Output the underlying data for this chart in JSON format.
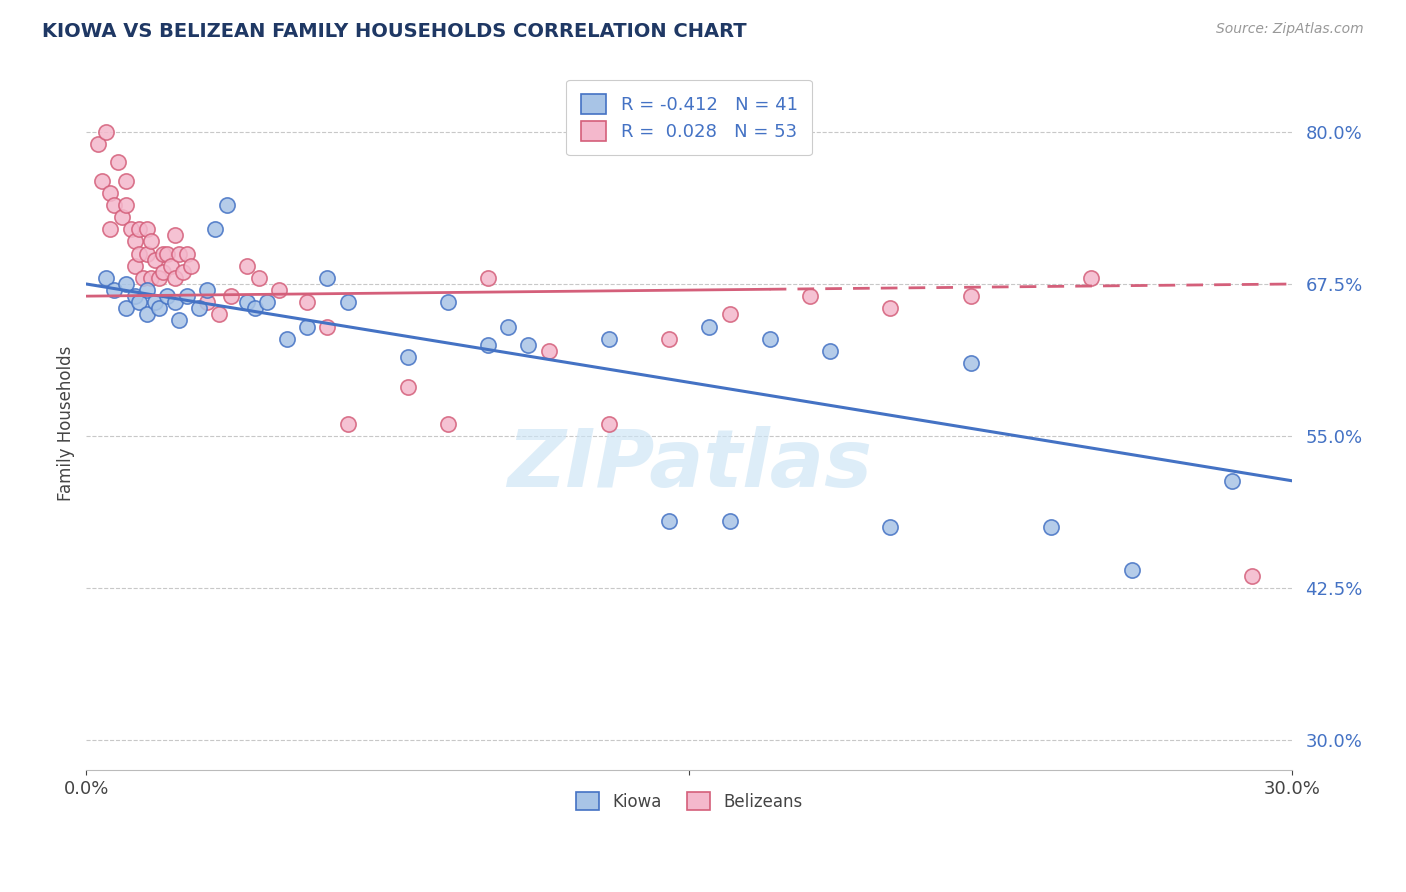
{
  "title": "KIOWA VS BELIZEAN FAMILY HOUSEHOLDS CORRELATION CHART",
  "source_text": "Source: ZipAtlas.com",
  "ylabel": "Family Households",
  "yticks": [
    0.3,
    0.425,
    0.55,
    0.675,
    0.8
  ],
  "ytick_labels": [
    "30.0%",
    "42.5%",
    "55.0%",
    "67.5%",
    "80.0%"
  ],
  "xmin": 0.0,
  "xmax": 0.3,
  "ymin": 0.275,
  "ymax": 0.845,
  "kiowa_dot_color": "#a8c4e6",
  "belizean_dot_color": "#f4b8cc",
  "kiowa_line_color": "#4472c4",
  "belizean_line_color": "#d45f7a",
  "kiowa_R": -0.412,
  "kiowa_N": 41,
  "belizean_R": 0.028,
  "belizean_N": 53,
  "grid_color": "#c8c8c8",
  "background_color": "#ffffff",
  "title_color": "#1f3864",
  "legend_text_color": "#4472c4",
  "kiowa_x": [
    0.005,
    0.007,
    0.01,
    0.01,
    0.012,
    0.013,
    0.015,
    0.015,
    0.017,
    0.018,
    0.02,
    0.022,
    0.023,
    0.025,
    0.028,
    0.03,
    0.032,
    0.035,
    0.04,
    0.042,
    0.045,
    0.05,
    0.055,
    0.06,
    0.065,
    0.08,
    0.09,
    0.1,
    0.105,
    0.11,
    0.13,
    0.145,
    0.155,
    0.16,
    0.17,
    0.185,
    0.2,
    0.22,
    0.24,
    0.26,
    0.285
  ],
  "kiowa_y": [
    0.68,
    0.67,
    0.675,
    0.655,
    0.665,
    0.66,
    0.67,
    0.65,
    0.66,
    0.655,
    0.665,
    0.66,
    0.645,
    0.665,
    0.655,
    0.67,
    0.72,
    0.74,
    0.66,
    0.655,
    0.66,
    0.63,
    0.64,
    0.68,
    0.66,
    0.615,
    0.66,
    0.625,
    0.64,
    0.625,
    0.63,
    0.48,
    0.64,
    0.48,
    0.63,
    0.62,
    0.475,
    0.61,
    0.475,
    0.44,
    0.513
  ],
  "belizean_x": [
    0.003,
    0.004,
    0.005,
    0.006,
    0.006,
    0.007,
    0.008,
    0.009,
    0.01,
    0.01,
    0.011,
    0.012,
    0.012,
    0.013,
    0.013,
    0.014,
    0.015,
    0.015,
    0.016,
    0.016,
    0.017,
    0.018,
    0.019,
    0.019,
    0.02,
    0.021,
    0.022,
    0.022,
    0.023,
    0.024,
    0.025,
    0.026,
    0.03,
    0.033,
    0.036,
    0.04,
    0.043,
    0.048,
    0.055,
    0.06,
    0.065,
    0.08,
    0.09,
    0.1,
    0.115,
    0.13,
    0.145,
    0.16,
    0.18,
    0.2,
    0.22,
    0.25,
    0.29
  ],
  "belizean_y": [
    0.79,
    0.76,
    0.8,
    0.75,
    0.72,
    0.74,
    0.775,
    0.73,
    0.76,
    0.74,
    0.72,
    0.71,
    0.69,
    0.72,
    0.7,
    0.68,
    0.72,
    0.7,
    0.68,
    0.71,
    0.695,
    0.68,
    0.7,
    0.685,
    0.7,
    0.69,
    0.68,
    0.715,
    0.7,
    0.685,
    0.7,
    0.69,
    0.66,
    0.65,
    0.665,
    0.69,
    0.68,
    0.67,
    0.66,
    0.64,
    0.56,
    0.59,
    0.56,
    0.68,
    0.62,
    0.56,
    0.63,
    0.65,
    0.665,
    0.655,
    0.665,
    0.68,
    0.435
  ]
}
